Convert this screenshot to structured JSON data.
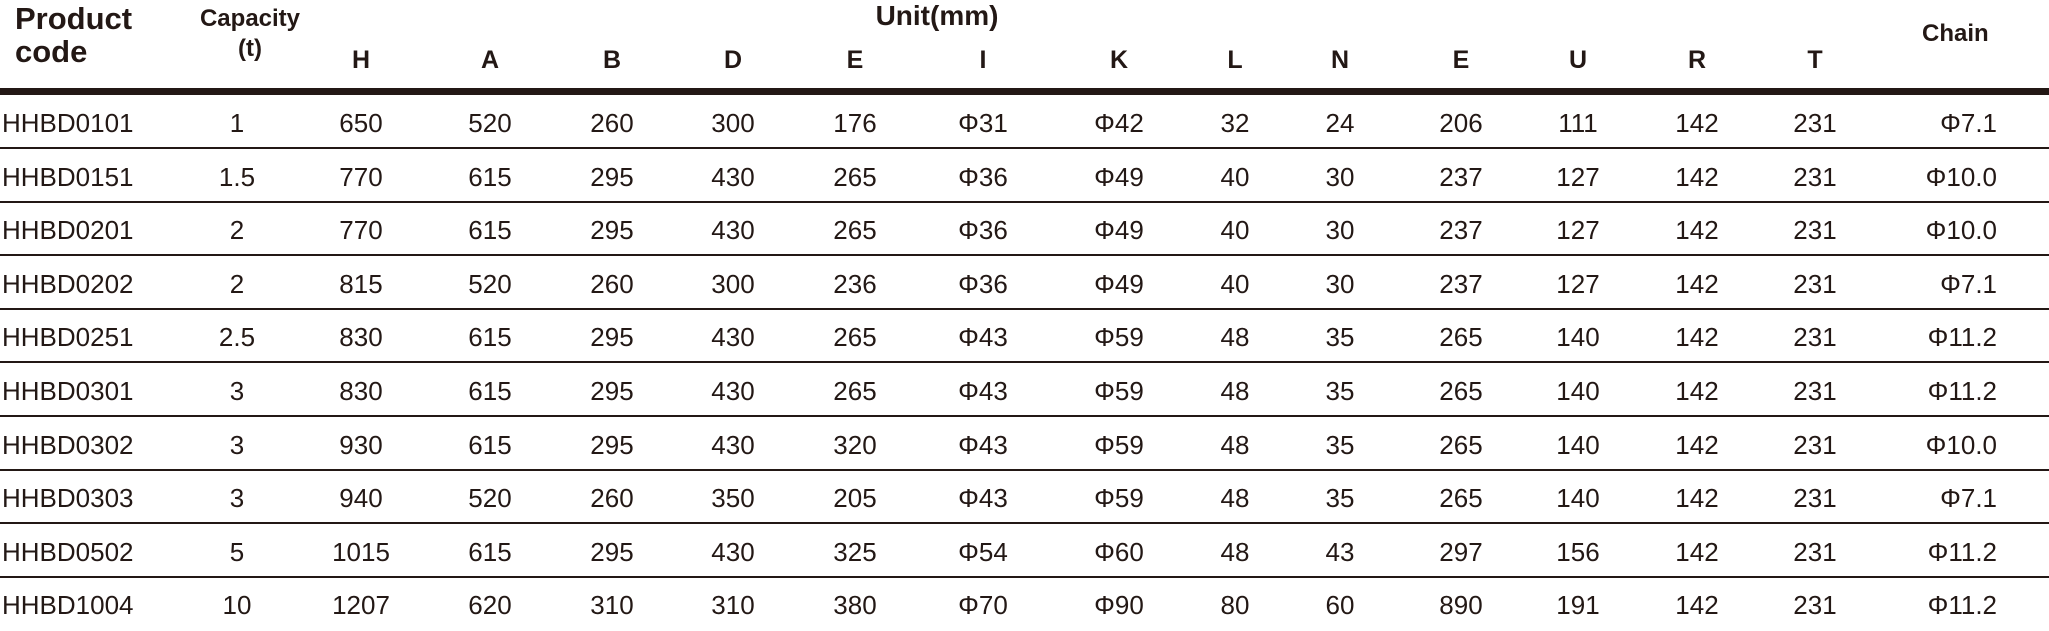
{
  "header": {
    "product_code": [
      "Product",
      "code"
    ],
    "capacity": [
      "Capacity",
      "(t)"
    ],
    "unit": "Unit(mm)",
    "columns": [
      "H",
      "A",
      "B",
      "D",
      "E",
      "I",
      "K",
      "L",
      "N",
      "E",
      "U",
      "R",
      "T"
    ],
    "chain": "Chain"
  },
  "rows": [
    {
      "code": "HHBD0101",
      "cap": "1",
      "vals": [
        "650",
        "520",
        "260",
        "300",
        "176",
        "Φ31",
        "Φ42",
        "32",
        "24",
        "206",
        "111",
        "142",
        "231"
      ],
      "chain": "Φ7.1"
    },
    {
      "code": "HHBD0151",
      "cap": "1.5",
      "vals": [
        "770",
        "615",
        "295",
        "430",
        "265",
        "Φ36",
        "Φ49",
        "40",
        "30",
        "237",
        "127",
        "142",
        "231"
      ],
      "chain": "Φ10.0"
    },
    {
      "code": "HHBD0201",
      "cap": "2",
      "vals": [
        "770",
        "615",
        "295",
        "430",
        "265",
        "Φ36",
        "Φ49",
        "40",
        "30",
        "237",
        "127",
        "142",
        "231"
      ],
      "chain": "Φ10.0"
    },
    {
      "code": "HHBD0202",
      "cap": "2",
      "vals": [
        "815",
        "520",
        "260",
        "300",
        "236",
        "Φ36",
        "Φ49",
        "40",
        "30",
        "237",
        "127",
        "142",
        "231"
      ],
      "chain": "Φ7.1"
    },
    {
      "code": "HHBD0251",
      "cap": "2.5",
      "vals": [
        "830",
        "615",
        "295",
        "430",
        "265",
        "Φ43",
        "Φ59",
        "48",
        "35",
        "265",
        "140",
        "142",
        "231"
      ],
      "chain": "Φ11.2"
    },
    {
      "code": "HHBD0301",
      "cap": "3",
      "vals": [
        "830",
        "615",
        "295",
        "430",
        "265",
        "Φ43",
        "Φ59",
        "48",
        "35",
        "265",
        "140",
        "142",
        "231"
      ],
      "chain": "Φ11.2"
    },
    {
      "code": "HHBD0302",
      "cap": "3",
      "vals": [
        "930",
        "615",
        "295",
        "430",
        "320",
        "Φ43",
        "Φ59",
        "48",
        "35",
        "265",
        "140",
        "142",
        "231"
      ],
      "chain": "Φ10.0"
    },
    {
      "code": "HHBD0303",
      "cap": "3",
      "vals": [
        "940",
        "520",
        "260",
        "350",
        "205",
        "Φ43",
        "Φ59",
        "48",
        "35",
        "265",
        "140",
        "142",
        "231"
      ],
      "chain": "Φ7.1"
    },
    {
      "code": "HHBD0502",
      "cap": "5",
      "vals": [
        "1015",
        "615",
        "295",
        "430",
        "325",
        "Φ54",
        "Φ60",
        "48",
        "43",
        "297",
        "156",
        "142",
        "231"
      ],
      "chain": "Φ11.2"
    },
    {
      "code": "HHBD1004",
      "cap": "10",
      "vals": [
        "1207",
        "620",
        "310",
        "310",
        "380",
        "Φ70",
        "Φ90",
        "80",
        "60",
        "890",
        "191",
        "142",
        "231"
      ],
      "chain": "Φ11.2"
    }
  ]
}
